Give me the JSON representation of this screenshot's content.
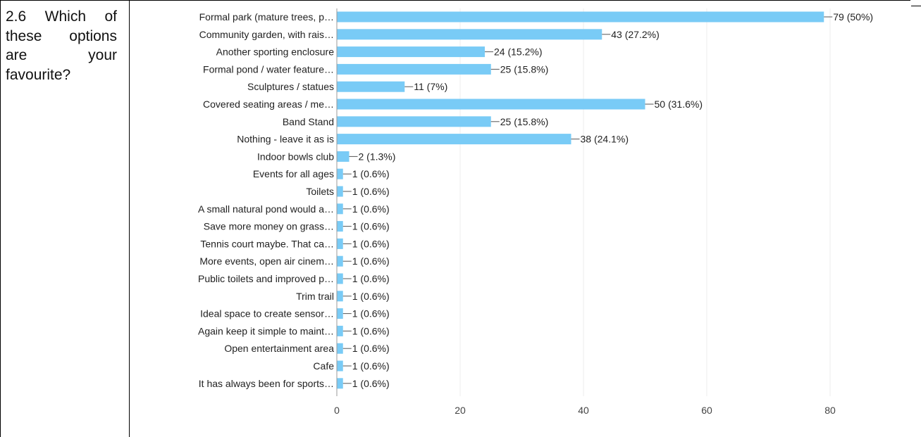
{
  "question": "2.6 Which of these options are your favourite?",
  "chart_data": {
    "type": "bar",
    "orientation": "horizontal",
    "title": "",
    "xlabel": "",
    "ylabel": "",
    "xlim": [
      0,
      80
    ],
    "xticks": [
      0,
      20,
      40,
      60,
      80
    ],
    "grid": true,
    "legend": "none",
    "bar_color": "#79CBF6",
    "categories": [
      "Formal park (mature trees, p…",
      "Community garden, with rais…",
      "Another sporting enclosure",
      "Formal pond / water feature…",
      "Sculptures / statues",
      "Covered seating areas / me…",
      "Band Stand",
      "Nothing - leave it as is",
      "Indoor bowls club",
      "Events for all ages",
      "Toilets",
      "A small natural pond would a…",
      "Save more money on grass…",
      "Tennis court maybe. That ca…",
      "More events, open air cinem…",
      "Public toilets and improved p…",
      "Trim trail",
      "Ideal space to create sensor…",
      "Again keep it simple to maint…",
      "Open entertainment area",
      "Cafe",
      "It has always been for sports…"
    ],
    "values": [
      79,
      43,
      24,
      25,
      11,
      50,
      25,
      38,
      2,
      1,
      1,
      1,
      1,
      1,
      1,
      1,
      1,
      1,
      1,
      1,
      1,
      1
    ],
    "value_labels": [
      "79 (50%)",
      "43 (27.2%)",
      "24 (15.2%)",
      "25 (15.8%)",
      "11 (7%)",
      "50 (31.6%)",
      "25 (15.8%)",
      "38 (24.1%)",
      "2 (1.3%)",
      "1 (0.6%)",
      "1 (0.6%)",
      "1 (0.6%)",
      "1 (0.6%)",
      "1 (0.6%)",
      "1 (0.6%)",
      "1 (0.6%)",
      "1 (0.6%)",
      "1 (0.6%)",
      "1 (0.6%)",
      "1 (0.6%)",
      "1 (0.6%)",
      "1 (0.6%)"
    ]
  }
}
